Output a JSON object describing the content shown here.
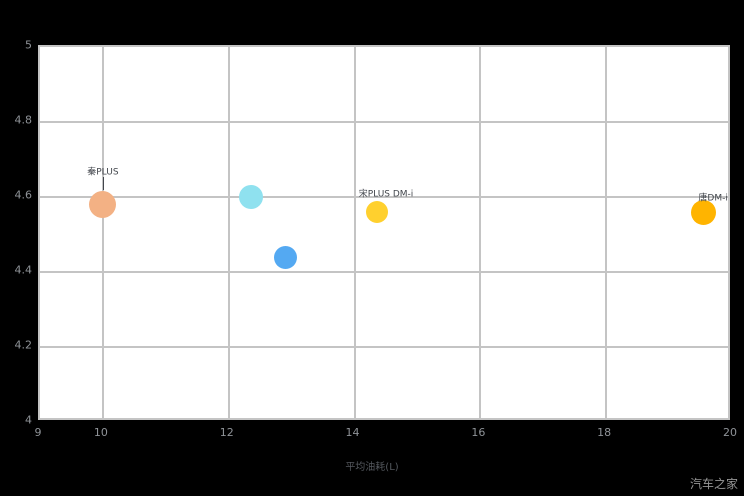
{
  "watermark": "汽车之家",
  "chart_data": {
    "type": "scatter",
    "title": "",
    "xlabel": "平均油耗(L)",
    "ylabel": "",
    "xlim": [
      9,
      20
    ],
    "ylim": [
      4,
      5
    ],
    "x_ticks": [
      9,
      10,
      12,
      14,
      16,
      18,
      20
    ],
    "y_ticks": [
      4,
      4.2,
      4.4,
      4.6,
      4.8,
      5
    ],
    "grid": true,
    "legend_position": "none",
    "page_bg": "#000000",
    "plot_bg": "#ffffff",
    "grid_color": "#c4c4c4",
    "points": [
      {
        "x": 10.0,
        "y": 4.58,
        "diameter": 27,
        "color": "#f3b184"
      },
      {
        "x": 12.35,
        "y": 4.6,
        "diameter": 24,
        "color": "#8fe1ef"
      },
      {
        "x": 12.9,
        "y": 4.44,
        "diameter": 23,
        "color": "#54a9f2"
      },
      {
        "x": 14.35,
        "y": 4.56,
        "diameter": 22,
        "color": "#ffd02e"
      },
      {
        "x": 19.55,
        "y": 4.56,
        "diameter": 25,
        "color": "#ffb400"
      }
    ],
    "annotations": [
      {
        "x": 10.0,
        "y": 4.67,
        "text": "秦PLUS",
        "leader": true
      },
      {
        "x": 14.5,
        "y": 4.61,
        "text": "宋PLUS DM-i",
        "leader": false
      },
      {
        "x": 19.7,
        "y": 4.6,
        "text": "唐DM-i",
        "leader": false
      }
    ]
  }
}
